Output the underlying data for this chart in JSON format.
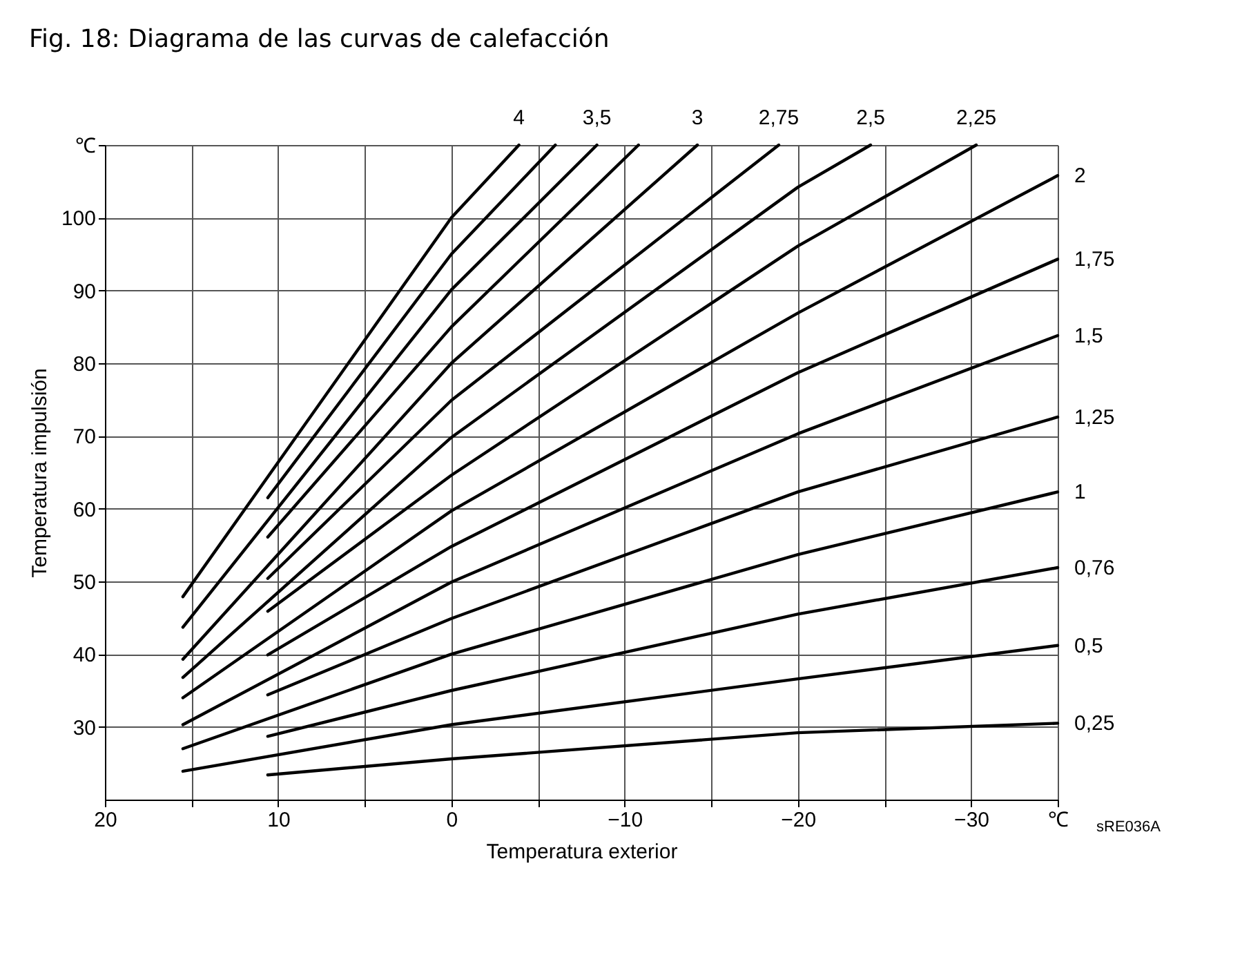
{
  "chart_data": {
    "type": "line",
    "title": "Fig. 18: Diagrama de las curvas de calefacción",
    "xlabel": "Temperatura exterior",
    "ylabel": "Temperatura impulsión",
    "xlim": [
      20,
      -35
    ],
    "ylim": [
      20,
      110
    ],
    "xticks": [
      20,
      {
        "value": 15,
        "label": null
      },
      10,
      {
        "value": 5,
        "label": null
      },
      0,
      {
        "value": -5,
        "label": null
      },
      -10,
      {
        "value": -15,
        "label": null
      },
      -20,
      {
        "value": -25,
        "label": null
      },
      -30,
      {
        "value": -35,
        "label": "℃"
      }
    ],
    "yticks": [
      30,
      40,
      50,
      60,
      70,
      80,
      90,
      100,
      {
        "value": 110,
        "label": "℃"
      }
    ],
    "grid": true,
    "legend": false,
    "annotations": [
      "sRE036A"
    ],
    "series": [
      {
        "name": "4",
        "color": "#000000",
        "x": [
          15.5,
          0,
          -3.9
        ],
        "values": [
          47.9,
          100,
          110
        ]
      },
      {
        "color": "#000000",
        "x": [
          10.6,
          0,
          -6.0
        ],
        "values": [
          61.5,
          95.0,
          110
        ]
      },
      {
        "name": "3,5",
        "color": "#000000",
        "x": [
          15.5,
          0,
          -8.4
        ],
        "values": [
          43.7,
          90.1,
          110
        ]
      },
      {
        "color": "#000000",
        "x": [
          10.6,
          0,
          -10.8
        ],
        "values": [
          56.1,
          85.0,
          110
        ]
      },
      {
        "name": "3",
        "color": "#000000",
        "x": [
          15.5,
          0,
          -14.2
        ],
        "values": [
          39.3,
          80.0,
          110
        ]
      },
      {
        "name": "2,75",
        "color": "#000000",
        "x": [
          10.6,
          0,
          -18.9
        ],
        "values": [
          50.4,
          74.9,
          110
        ]
      },
      {
        "name": "2,5",
        "color": "#000000",
        "x": [
          15.5,
          0,
          -20,
          -24.2
        ],
        "values": [
          36.8,
          69.8,
          104.2,
          110
        ]
      },
      {
        "name": "2,25",
        "color": "#000000",
        "x": [
          10.6,
          0,
          -20,
          -30.3
        ],
        "values": [
          45.9,
          64.6,
          96.1,
          110
        ]
      },
      {
        "name": "2",
        "color": "#000000",
        "x": [
          15.5,
          0,
          -20,
          -35
        ],
        "values": [
          34.0,
          59.7,
          86.9,
          105.8
        ]
      },
      {
        "name": "1,75",
        "color": "#000000",
        "x": [
          10.6,
          0,
          -20,
          -35
        ],
        "values": [
          39.9,
          54.8,
          78.7,
          94.3
        ]
      },
      {
        "name": "1,5",
        "color": "#000000",
        "x": [
          15.5,
          0,
          -20,
          -35
        ],
        "values": [
          30.3,
          49.9,
          70.3,
          83.8
        ]
      },
      {
        "name": "1,25",
        "color": "#000000",
        "x": [
          10.6,
          0,
          -20,
          -35
        ],
        "values": [
          34.4,
          44.9,
          62.3,
          72.6
        ]
      },
      {
        "name": "1",
        "color": "#000000",
        "x": [
          15.5,
          0,
          -20,
          -35
        ],
        "values": [
          27.0,
          40.0,
          53.7,
          62.3
        ]
      },
      {
        "name": "0,76",
        "color": "#000000",
        "x": [
          10.6,
          0,
          -20,
          -35
        ],
        "values": [
          28.7,
          35.0,
          45.5,
          51.9
        ]
      },
      {
        "name": "0,5",
        "color": "#000000",
        "x": [
          15.5,
          0,
          -20,
          -35
        ],
        "values": [
          23.9,
          30.3,
          36.6,
          41.2
        ]
      },
      {
        "name": "0,25",
        "color": "#000000",
        "x": [
          10.6,
          0,
          -20,
          -35
        ],
        "values": [
          23.4,
          25.6,
          29.2,
          30.5
        ]
      }
    ]
  }
}
